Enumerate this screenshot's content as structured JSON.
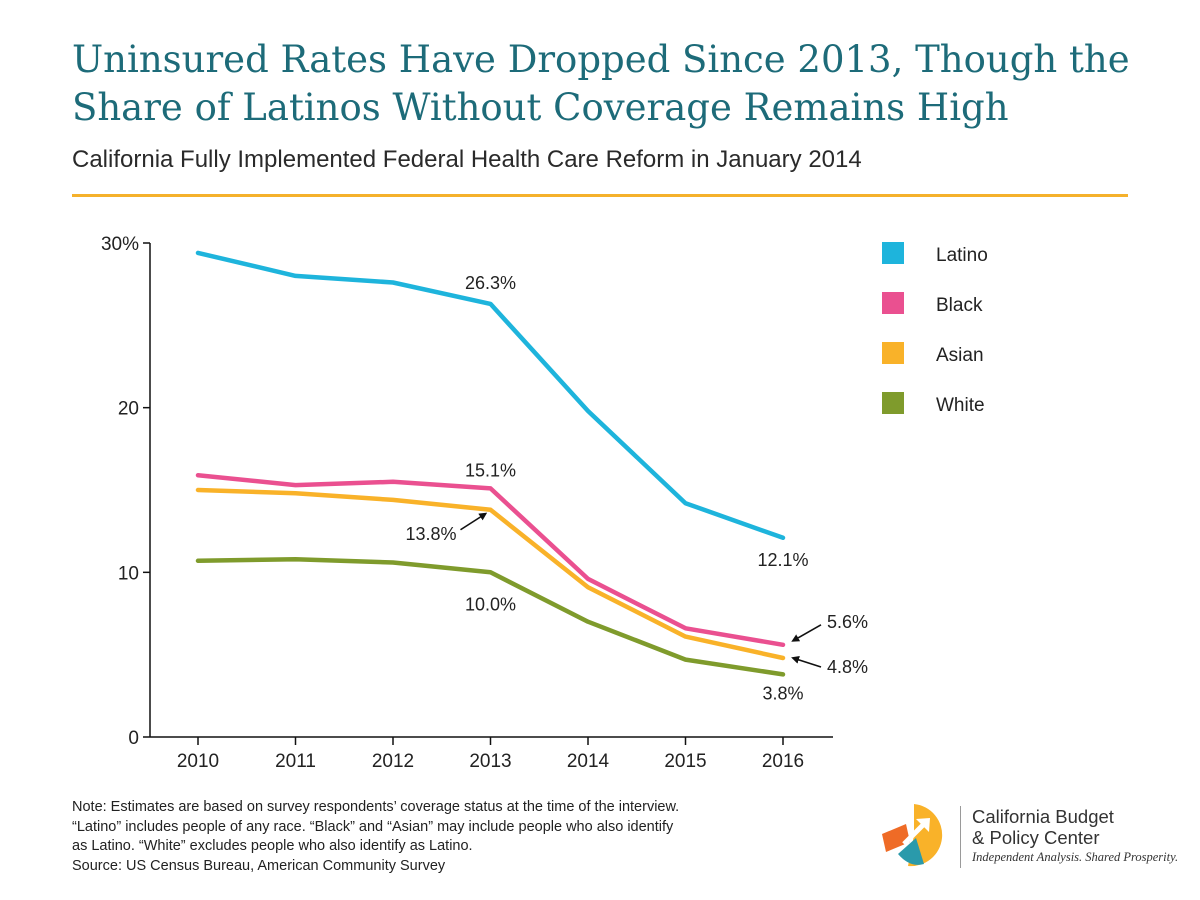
{
  "header": {
    "title_line1": "Uninsured Rates Have Dropped Since 2013, Though the",
    "title_line2": "Share of Latinos Without Coverage Remains High",
    "subtitle": "California Fully Implemented Federal Health Care Reform in January 2014"
  },
  "chart_data": {
    "type": "line",
    "x": [
      "2010",
      "2011",
      "2012",
      "2013",
      "2014",
      "2015",
      "2016"
    ],
    "ylim": [
      0,
      30
    ],
    "y_ticks": [
      {
        "value": 0,
        "label": "0"
      },
      {
        "value": 10,
        "label": "10"
      },
      {
        "value": 20,
        "label": "20"
      },
      {
        "value": 30,
        "label": "30%"
      }
    ],
    "grid": false,
    "legend_position": "top-right",
    "series": [
      {
        "name": "Latino",
        "color": "#1eb4dc",
        "values": [
          29.4,
          28.0,
          27.6,
          26.3,
          19.8,
          14.2,
          12.1
        ]
      },
      {
        "name": "Black",
        "color": "#ea5090",
        "values": [
          15.9,
          15.3,
          15.5,
          15.1,
          9.6,
          6.6,
          5.6
        ]
      },
      {
        "name": "Asian",
        "color": "#f9b229",
        "values": [
          15.0,
          14.8,
          14.4,
          13.8,
          9.1,
          6.1,
          4.8
        ]
      },
      {
        "name": "White",
        "color": "#7f9b2c",
        "values": [
          10.7,
          10.8,
          10.6,
          10.0,
          7.0,
          4.7,
          3.8
        ]
      }
    ],
    "annotations": [
      {
        "text": "26.3%",
        "x": "2013",
        "y": 26.3,
        "series": "Latino"
      },
      {
        "text": "15.1%",
        "x": "2013",
        "y": 15.1,
        "series": "Black"
      },
      {
        "text": "13.8%",
        "x": "2013",
        "y": 13.8,
        "series": "Asian"
      },
      {
        "text": "10.0%",
        "x": "2013",
        "y": 10.0,
        "series": "White"
      },
      {
        "text": "12.1%",
        "x": "2016",
        "y": 12.1,
        "series": "Latino"
      },
      {
        "text": "5.6%",
        "x": "2016",
        "y": 5.6,
        "series": "Black"
      },
      {
        "text": "4.8%",
        "x": "2016",
        "y": 4.8,
        "series": "Asian"
      },
      {
        "text": "3.8%",
        "x": "2016",
        "y": 3.8,
        "series": "White"
      }
    ]
  },
  "note": {
    "line1": "Note: Estimates are based on survey respondents’ coverage status at the time of the interview.",
    "line2": "“Latino” includes people of any race. “Black” and “Asian” may include people who also identify",
    "line3": "as Latino. “White” excludes people who also identify as Latino.",
    "line4": "Source: US Census Bureau, American Community Survey"
  },
  "logo": {
    "org_line1": "California Budget",
    "org_line2": "& Policy Center",
    "tagline": "Independent Analysis. Shared Prosperity.",
    "colors": {
      "yellow": "#f9b229",
      "orange": "#ef6b26",
      "teal": "#2a9aab"
    }
  }
}
